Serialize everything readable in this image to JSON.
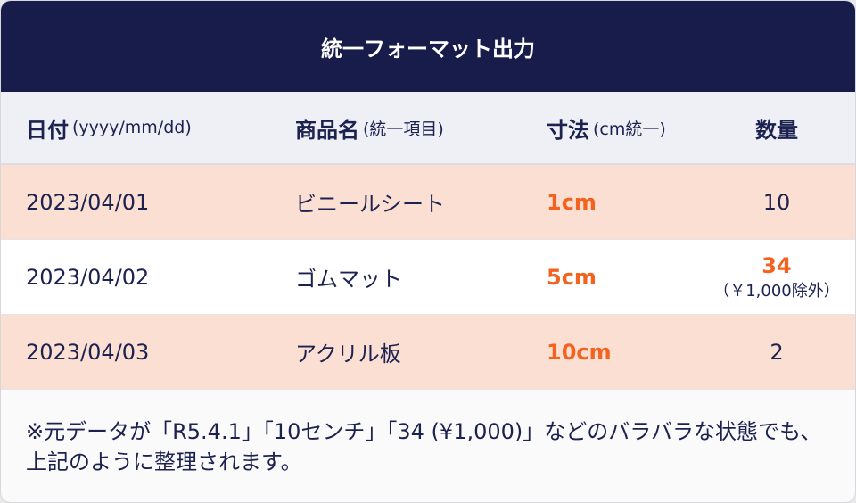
{
  "title": "統一フォーマット出力",
  "columns": [
    {
      "label": "日付",
      "sub": "(yyyy/mm/dd)"
    },
    {
      "label": "商品名",
      "sub": "(統一項目)"
    },
    {
      "label": "寸法",
      "sub": "(cm統一)"
    },
    {
      "label": "数量",
      "sub": ""
    }
  ],
  "rows": [
    {
      "date": "2023/04/01",
      "name": "ビニールシート",
      "size": "1cm",
      "qty": "10",
      "note": ""
    },
    {
      "date": "2023/04/02",
      "name": "ゴムマット",
      "size": "5cm",
      "qty": "34",
      "note": "（￥1,000除外）"
    },
    {
      "date": "2023/04/03",
      "name": "アクリル板",
      "size": "10cm",
      "qty": "2",
      "note": ""
    }
  ],
  "footer": "※元データが「R5.4.1」「10センチ」「34 (¥1,000)」などのバラバラな状態でも、上記のように整理されます。",
  "colors": {
    "header": "#171c4b",
    "accent": "#f4621f",
    "row_highlight": "#fcdfd3"
  }
}
